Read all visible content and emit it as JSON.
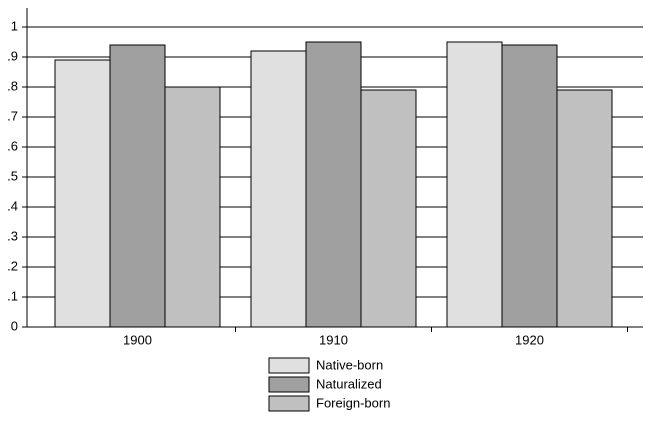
{
  "chart_data": {
    "type": "bar",
    "categories": [
      "1900",
      "1910",
      "1920"
    ],
    "series": [
      {
        "name": "Native-born",
        "color": "#e0e0e0",
        "values": [
          0.89,
          0.92,
          0.95
        ]
      },
      {
        "name": "Naturalized",
        "color": "#a0a0a0",
        "values": [
          0.94,
          0.95,
          0.94
        ]
      },
      {
        "name": "Foreign-born",
        "color": "#c0c0c0",
        "values": [
          0.8,
          0.79,
          0.79
        ]
      }
    ],
    "ylim": [
      0,
      1
    ],
    "yticks": [
      0,
      {
        "value": 0.1,
        "label": ".1"
      },
      {
        "value": 0.2,
        "label": ".2"
      },
      {
        "value": 0.3,
        "label": ".3"
      },
      {
        "value": 0.4,
        "label": ".4"
      },
      {
        "value": 0.5,
        "label": ".5"
      },
      {
        "value": 0.6,
        "label": ".6"
      },
      {
        "value": 0.7,
        "label": ".7"
      },
      {
        "value": 0.8,
        "label": ".8"
      },
      {
        "value": 0.9,
        "label": ".9"
      },
      1
    ],
    "grid": true,
    "legend": "bottom"
  }
}
